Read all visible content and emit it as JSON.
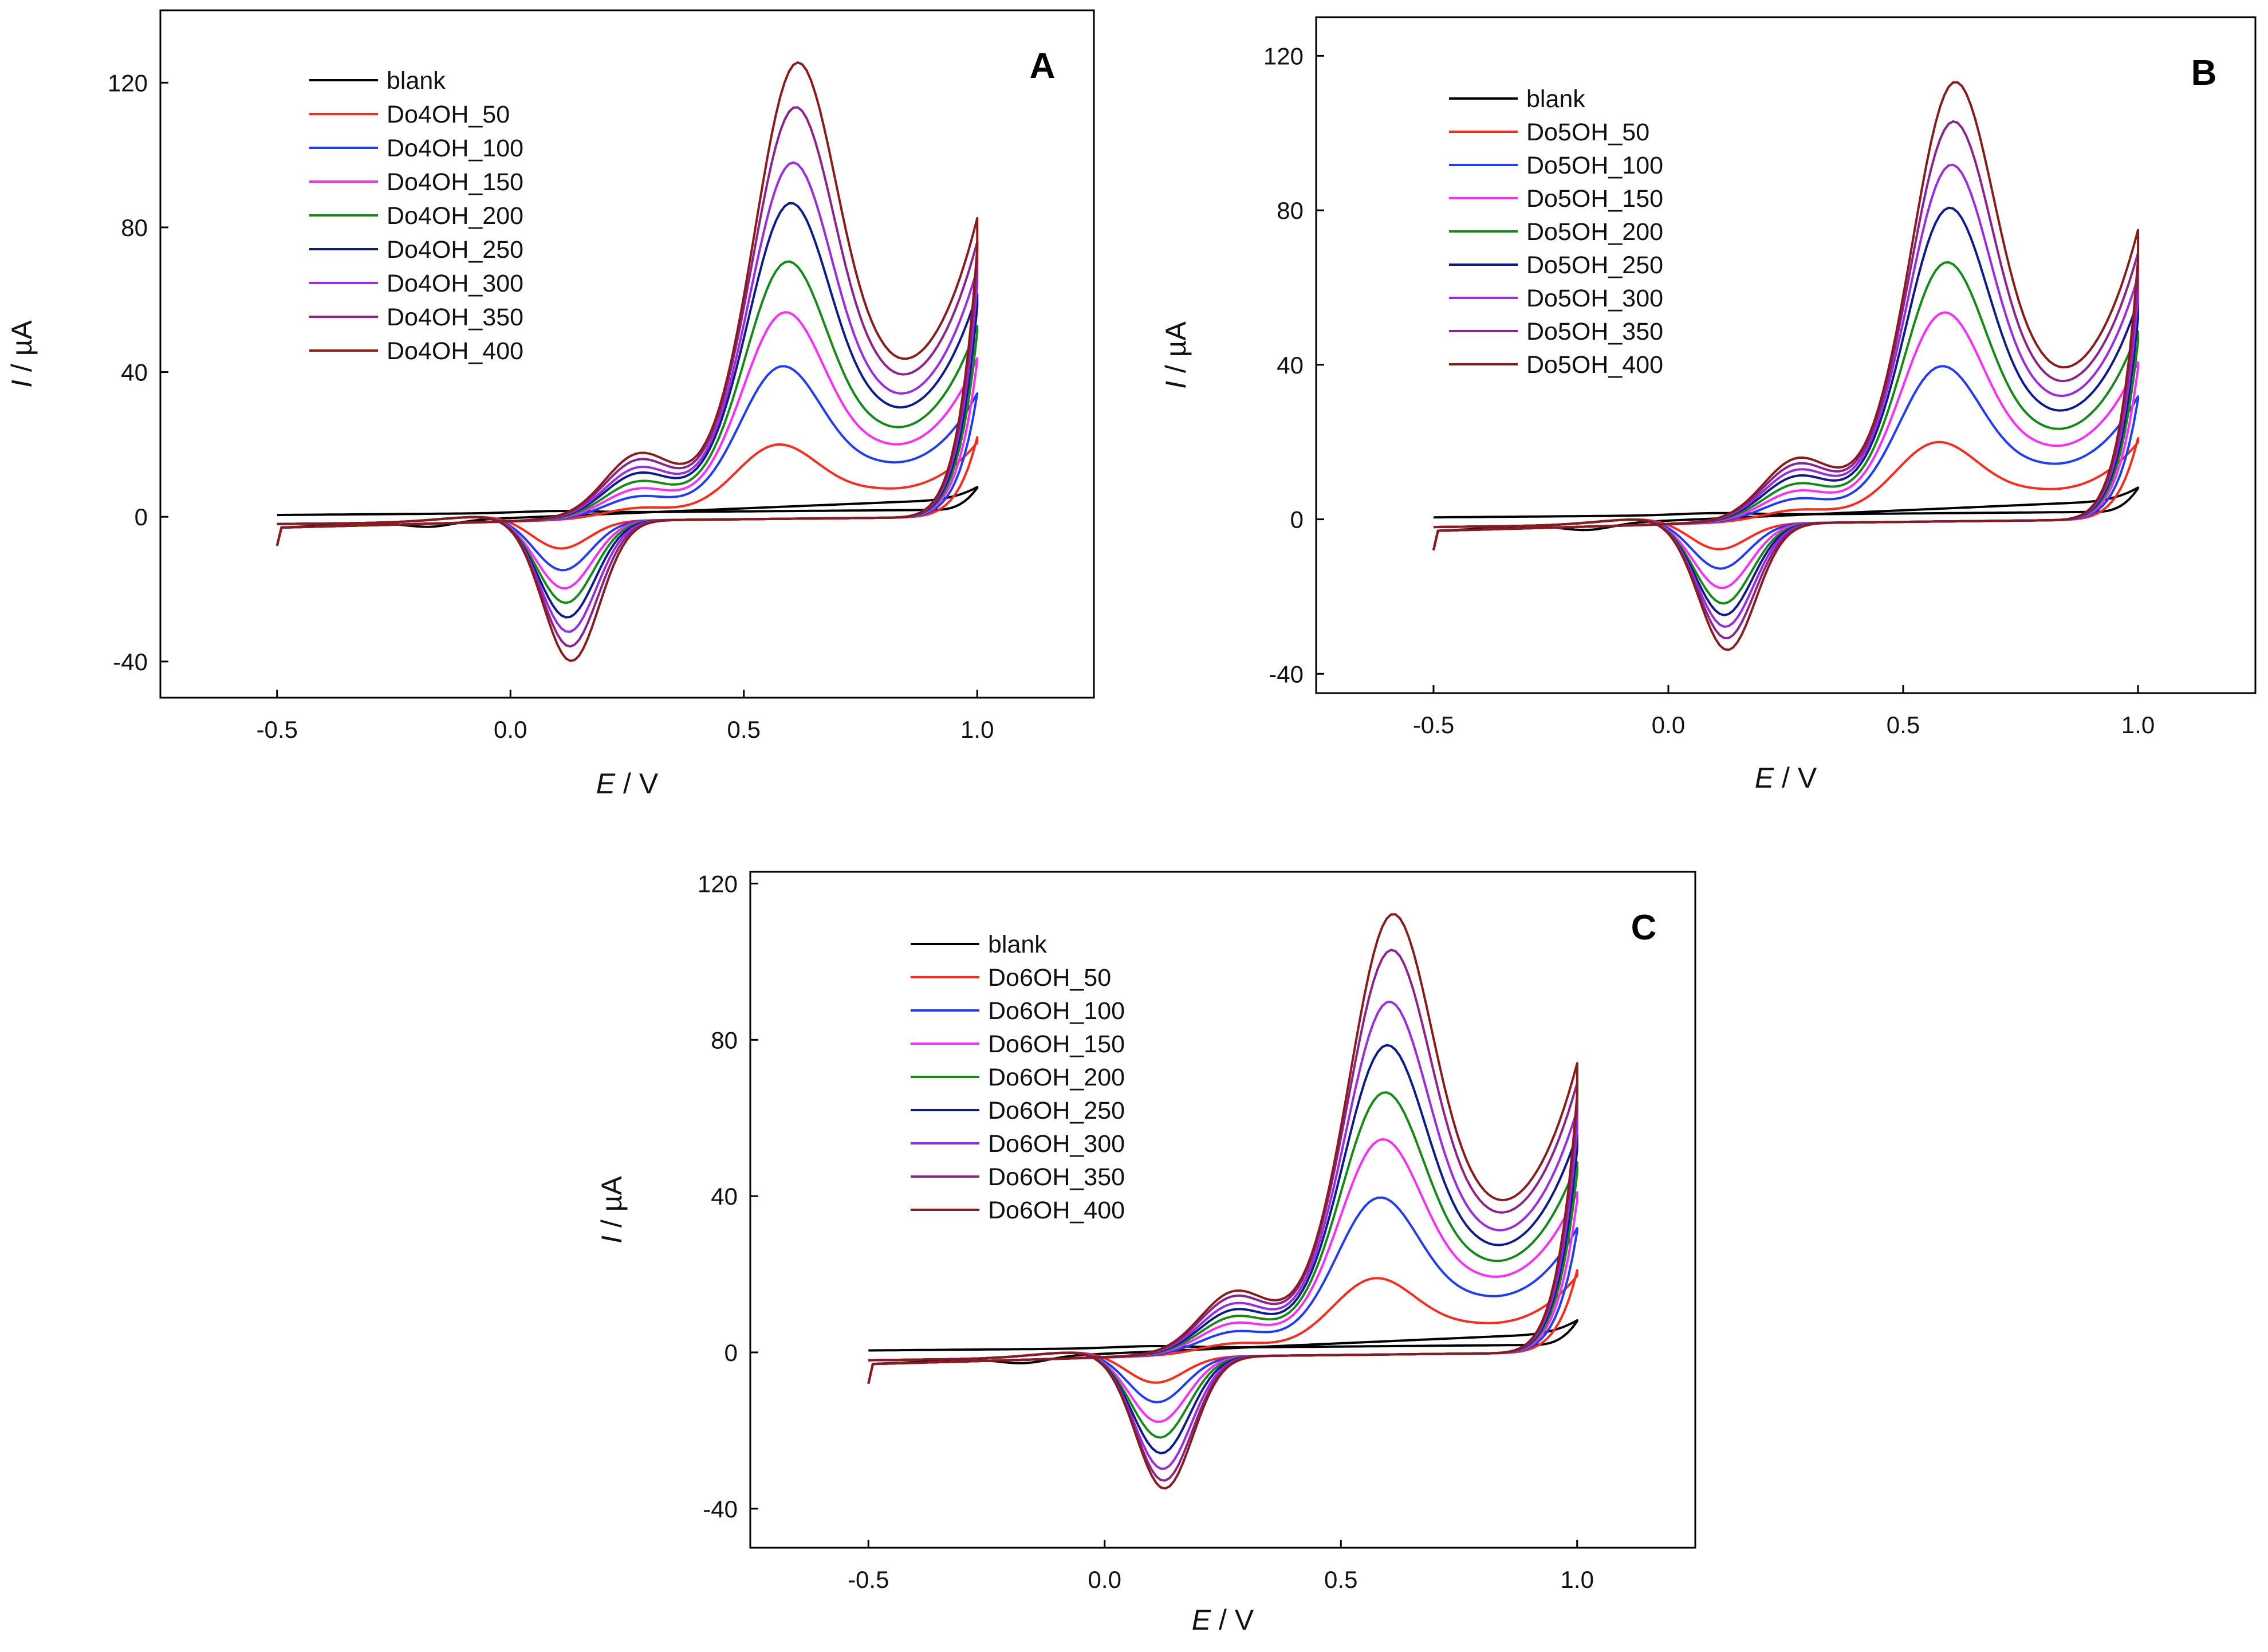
{
  "colors": {
    "blank": "#000000",
    "c50": "#ff2a1a",
    "c100": "#1f3bff",
    "c150": "#ff2cff",
    "c200": "#138a13",
    "c250": "#0b1a8c",
    "c300": "#9a2be2",
    "c350": "#8c238c",
    "c400": "#8b1a1a"
  },
  "chart_data": [
    {
      "type": "line",
      "panel_label": "A",
      "xlabel_italic": "E",
      "xlabel_rest": " / V",
      "ylabel_italic": "I",
      "ylabel_rest": " / µA",
      "xlim": [
        -0.75,
        1.25
      ],
      "ylim": [
        -50,
        140
      ],
      "xticks": [
        -0.5,
        0.0,
        0.5,
        1.0
      ],
      "xtick_labels": [
        "-0.5",
        "0.0",
        "0.5",
        "1.0"
      ],
      "yticks": [
        -40,
        0,
        40,
        80,
        120
      ],
      "ytick_labels": [
        "-40",
        "0",
        "40",
        "80",
        "120"
      ],
      "legend_position": "top-left",
      "series": [
        {
          "name": "blank",
          "anodic_peak_uA": 5,
          "cathodic_peak_uA": -3,
          "end_current_uA": 8
        },
        {
          "name": "Do4OH_50",
          "anodic_peak_uA": 20,
          "cathodic_peak_uA": -8,
          "end_current_uA": 22
        },
        {
          "name": "Do4OH_100",
          "anodic_peak_uA": 42,
          "cathodic_peak_uA": -14,
          "end_current_uA": 34
        },
        {
          "name": "Do4OH_150",
          "anodic_peak_uA": 57,
          "cathodic_peak_uA": -19,
          "end_current_uA": 43
        },
        {
          "name": "Do4OH_200",
          "anodic_peak_uA": 71,
          "cathodic_peak_uA": -23,
          "end_current_uA": 51
        },
        {
          "name": "Do4OH_250",
          "anodic_peak_uA": 87,
          "cathodic_peak_uA": -27,
          "end_current_uA": 58
        },
        {
          "name": "Do4OH_300",
          "anodic_peak_uA": 98,
          "cathodic_peak_uA": -31,
          "end_current_uA": 64
        },
        {
          "name": "Do4OH_350",
          "anodic_peak_uA": 113,
          "cathodic_peak_uA": -35,
          "end_current_uA": 69
        },
        {
          "name": "Do4OH_400",
          "anodic_peak_uA": 125,
          "cathodic_peak_uA": -39,
          "end_current_uA": 74
        }
      ]
    },
    {
      "type": "line",
      "panel_label": "B",
      "xlabel_italic": "E",
      "xlabel_rest": " / V",
      "ylabel_italic": "I",
      "ylabel_rest": " / µA",
      "xlim": [
        -0.75,
        1.25
      ],
      "ylim": [
        -45,
        130
      ],
      "xticks": [
        -0.5,
        0.0,
        0.5,
        1.0
      ],
      "xtick_labels": [
        "-0.5",
        "0.0",
        "0.5",
        "1.0"
      ],
      "yticks": [
        -40,
        0,
        40,
        80,
        120
      ],
      "ytick_labels": [
        "-40",
        "0",
        "40",
        "80",
        "120"
      ],
      "legend_position": "top-left",
      "series": [
        {
          "name": "blank",
          "anodic_peak_uA": 5,
          "cathodic_peak_uA": -3,
          "end_current_uA": 8
        },
        {
          "name": "Do5OH_50",
          "anodic_peak_uA": 20,
          "cathodic_peak_uA": -7,
          "end_current_uA": 21
        },
        {
          "name": "Do5OH_100",
          "anodic_peak_uA": 40,
          "cathodic_peak_uA": -12,
          "end_current_uA": 31
        },
        {
          "name": "Do5OH_150",
          "anodic_peak_uA": 54,
          "cathodic_peak_uA": -17,
          "end_current_uA": 39
        },
        {
          "name": "Do5OH_200",
          "anodic_peak_uA": 67,
          "cathodic_peak_uA": -21,
          "end_current_uA": 46
        },
        {
          "name": "Do5OH_250",
          "anodic_peak_uA": 81,
          "cathodic_peak_uA": -24,
          "end_current_uA": 52
        },
        {
          "name": "Do5OH_300",
          "anodic_peak_uA": 92,
          "cathodic_peak_uA": -27,
          "end_current_uA": 57
        },
        {
          "name": "Do5OH_350",
          "anodic_peak_uA": 103,
          "cathodic_peak_uA": -30,
          "end_current_uA": 62
        },
        {
          "name": "Do5OH_400",
          "anodic_peak_uA": 113,
          "cathodic_peak_uA": -33,
          "end_current_uA": 67
        }
      ]
    },
    {
      "type": "line",
      "panel_label": "C",
      "xlabel_italic": "E",
      "xlabel_rest": " / V",
      "ylabel_italic": "I",
      "ylabel_rest": " / µA",
      "xlim": [
        -0.75,
        1.25
      ],
      "ylim": [
        -50,
        123
      ],
      "xticks": [
        -0.5,
        0.0,
        0.5,
        1.0
      ],
      "xtick_labels": [
        "-0.5",
        "0.0",
        "0.5",
        "1.0"
      ],
      "yticks": [
        -40,
        0,
        40,
        80,
        120
      ],
      "ytick_labels": [
        "-40",
        "0",
        "40",
        "80",
        "120"
      ],
      "legend_position": "top-left",
      "series": [
        {
          "name": "blank",
          "anodic_peak_uA": 5,
          "cathodic_peak_uA": -3,
          "end_current_uA": 8
        },
        {
          "name": "Do6OH_50",
          "anodic_peak_uA": 19,
          "cathodic_peak_uA": -7,
          "end_current_uA": 21
        },
        {
          "name": "Do6OH_100",
          "anodic_peak_uA": 40,
          "cathodic_peak_uA": -12,
          "end_current_uA": 31
        },
        {
          "name": "Do6OH_150",
          "anodic_peak_uA": 55,
          "cathodic_peak_uA": -17,
          "end_current_uA": 39
        },
        {
          "name": "Do6OH_200",
          "anodic_peak_uA": 67,
          "cathodic_peak_uA": -21,
          "end_current_uA": 46
        },
        {
          "name": "Do6OH_250",
          "anodic_peak_uA": 79,
          "cathodic_peak_uA": -25,
          "end_current_uA": 52
        },
        {
          "name": "Do6OH_300",
          "anodic_peak_uA": 90,
          "cathodic_peak_uA": -29,
          "end_current_uA": 57
        },
        {
          "name": "Do6OH_350",
          "anodic_peak_uA": 103,
          "cathodic_peak_uA": -32,
          "end_current_uA": 62
        },
        {
          "name": "Do6OH_400",
          "anodic_peak_uA": 112,
          "cathodic_peak_uA": -34,
          "end_current_uA": 66
        }
      ]
    }
  ]
}
